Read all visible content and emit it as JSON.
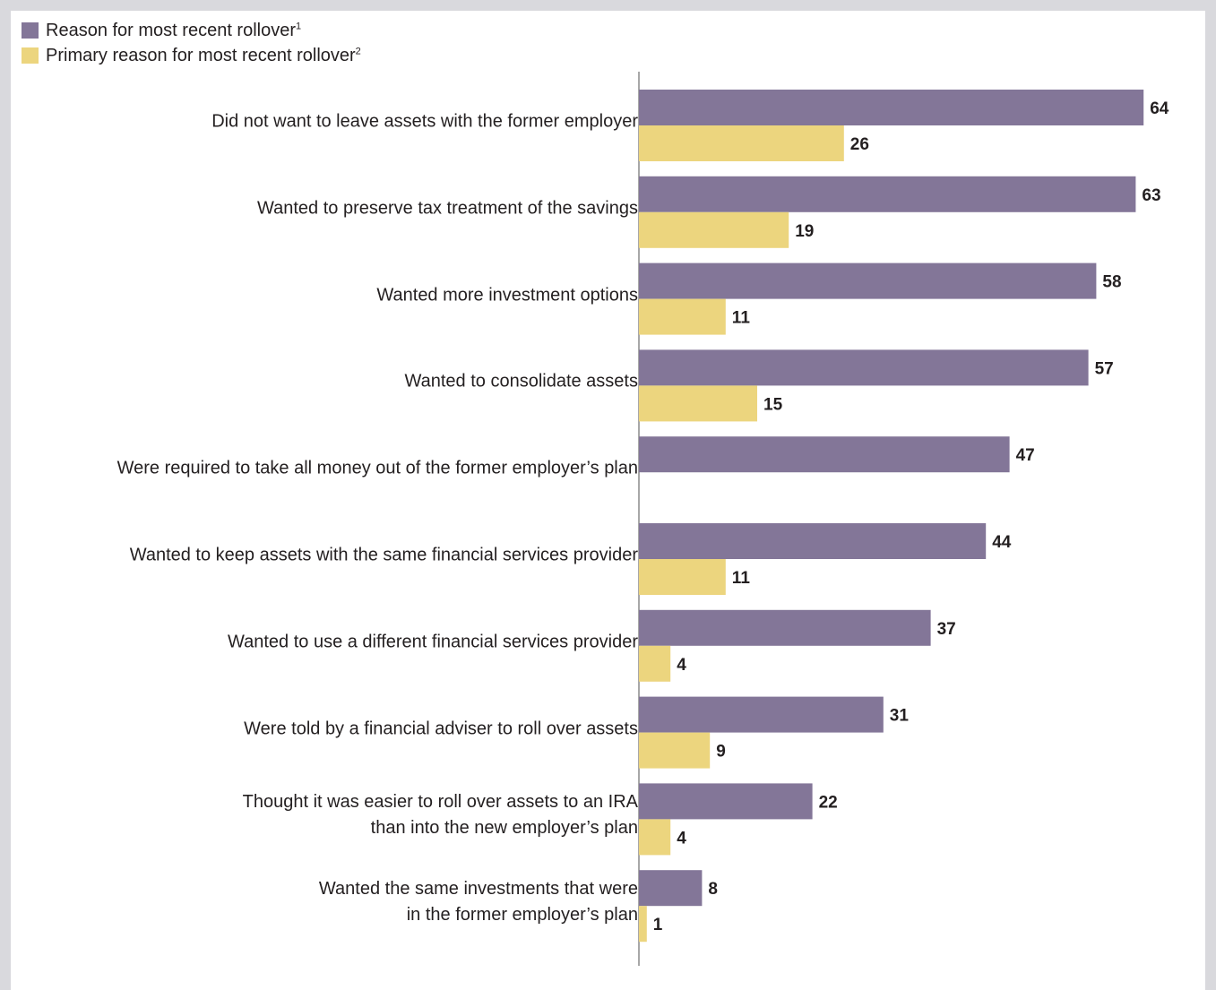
{
  "legend": [
    {
      "label": "Reason for most recent rollover",
      "sup": "1",
      "color": "#837698"
    },
    {
      "label": "Primary reason for most recent rollover",
      "sup": "2",
      "color": "#ecd57e"
    }
  ],
  "chart_data": {
    "type": "bar",
    "orientation": "horizontal",
    "categories": [
      "Did not want to leave assets with the former employer",
      "Wanted to preserve tax treatment of the savings",
      "Wanted more investment options",
      "Wanted to consolidate assets",
      "Were required to take all money out of the former employer’s plan",
      "Wanted to keep assets with the same financial services provider",
      "Wanted to use a different financial services provider",
      "Were told by a financial adviser to roll over assets",
      "Thought it was easier to roll over assets to an IRA\nthan into the new employer’s plan",
      "Wanted the same investments that were\nin the former employer’s plan"
    ],
    "series": [
      {
        "name": "Reason for most recent rollover",
        "color": "#837698",
        "values": [
          64,
          63,
          58,
          57,
          47,
          44,
          37,
          31,
          22,
          8
        ]
      },
      {
        "name": "Primary reason for most recent rollover",
        "color": "#ecd57e",
        "values": [
          26,
          19,
          11,
          15,
          null,
          11,
          4,
          9,
          4,
          1
        ]
      }
    ],
    "xlim": [
      0,
      64
    ],
    "legend_position": "top-left"
  }
}
